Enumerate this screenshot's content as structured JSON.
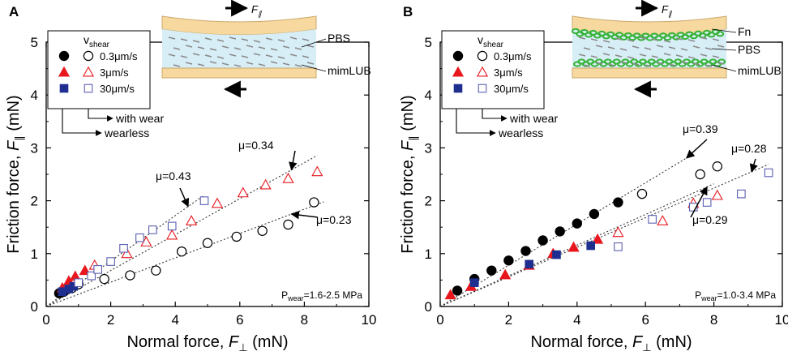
{
  "colors": {
    "filled_circle": "#000000",
    "open_circle": "#000000",
    "filled_triangle": "#e8171e",
    "open_triangle": "#e8171e",
    "filled_square": "#1f2f8f",
    "open_square": "#5a5fb0",
    "substrate": "#f7d9a0",
    "pbs": "#d8eef7",
    "fn": "#35b335"
  },
  "chart_data": [
    {
      "panel": "A",
      "type": "scatter",
      "xlabel": "Normal force, F⊥ (mN)",
      "ylabel": "Friction force, F∥ (mN)",
      "xlim": [
        0,
        10
      ],
      "ylim": [
        0,
        5
      ],
      "xticks": [
        "0",
        "2",
        "4",
        "6",
        "8",
        "10"
      ],
      "yticks": [
        "0",
        "1",
        "2",
        "3",
        "4",
        "5"
      ],
      "legend": {
        "title_main": "v",
        "title_sub": "shear",
        "entries": [
          "0.3μm/s",
          "3μm/s",
          "30μm/s"
        ],
        "wear_label": "with wear",
        "wearless_label": "wearless"
      },
      "pressure": {
        "main": "P",
        "sub": "wear",
        "value": "=1.6-2.5 MPa"
      },
      "schematic": {
        "labels": [
          "PBS",
          "mimLUB"
        ],
        "force_label": "F",
        "fn": false
      },
      "series": [
        {
          "name": "0.3μm/s wearless",
          "marker": "circle",
          "filled": true,
          "x": [
            0.4,
            0.55
          ],
          "y": [
            0.25,
            0.28
          ]
        },
        {
          "name": "0.3μm/s with wear",
          "marker": "circle",
          "filled": false,
          "x": [
            0.8,
            1.0,
            1.8,
            2.6,
            3.4,
            4.2,
            5.0,
            5.9,
            6.7,
            7.5,
            8.3
          ],
          "y": [
            0.35,
            0.42,
            0.52,
            0.59,
            0.68,
            1.04,
            1.2,
            1.32,
            1.43,
            1.55,
            1.97
          ]
        },
        {
          "name": "3μm/s wearless",
          "marker": "triangle",
          "filled": true,
          "x": [
            0.5,
            0.7,
            0.9,
            1.2
          ],
          "y": [
            0.35,
            0.48,
            0.57,
            0.68
          ]
        },
        {
          "name": "3μm/s with wear",
          "marker": "triangle",
          "filled": false,
          "x": [
            1.5,
            2.5,
            3.1,
            3.9,
            4.5,
            5.3,
            6.1,
            6.8,
            7.5,
            8.4
          ],
          "y": [
            0.78,
            1.0,
            1.22,
            1.35,
            1.62,
            1.95,
            2.15,
            2.3,
            2.42,
            2.55
          ]
        },
        {
          "name": "30μm/s wearless",
          "marker": "square",
          "filled": true,
          "x": [
            0.5,
            0.7,
            0.85
          ],
          "y": [
            0.28,
            0.33,
            0.38
          ]
        },
        {
          "name": "30μm/s with wear",
          "marker": "square",
          "filled": false,
          "x": [
            1.0,
            1.4,
            1.6,
            2.0,
            2.4,
            2.9,
            3.3,
            3.9,
            4.9
          ],
          "y": [
            0.45,
            0.58,
            0.7,
            0.85,
            1.1,
            1.3,
            1.45,
            1.52,
            2.0
          ]
        }
      ],
      "fits": [
        {
          "label": "μ=0.34",
          "slope": 0.34,
          "x_end": 8.4
        },
        {
          "label": "μ=0.43",
          "slope": 0.43,
          "x_end": 4.9
        },
        {
          "label": "μ=0.23",
          "slope": 0.23,
          "x_end": 8.6
        }
      ]
    },
    {
      "panel": "B",
      "type": "scatter",
      "xlabel": "Normal force, F⊥ (mN)",
      "ylabel": "Friction force, F∥ (mN)",
      "xlim": [
        0,
        10
      ],
      "ylim": [
        0,
        5
      ],
      "xticks": [
        "0",
        "2",
        "4",
        "6",
        "8",
        "10"
      ],
      "yticks": [
        "0",
        "1",
        "2",
        "3",
        "4",
        "5"
      ],
      "legend": {
        "title_main": "v",
        "title_sub": "shear",
        "entries": [
          "0.3μm/s",
          "3μm/s",
          "30μm/s"
        ],
        "wear_label": "with wear",
        "wearless_label": "wearless"
      },
      "pressure": {
        "main": "P",
        "sub": "wear",
        "value": "=1.0-3.4 MPa"
      },
      "schematic": {
        "labels": [
          "Fn",
          "PBS",
          "mimLUB"
        ],
        "force_label": "F",
        "fn": true
      },
      "series": [
        {
          "name": "0.3μm/s wearless",
          "marker": "circle",
          "filled": true,
          "x": [
            0.5,
            1.0,
            1.5,
            2.0,
            2.5,
            3.0,
            3.5,
            4.0,
            4.5,
            5.2
          ],
          "y": [
            0.3,
            0.52,
            0.68,
            0.87,
            1.05,
            1.25,
            1.42,
            1.57,
            1.75,
            1.97
          ]
        },
        {
          "name": "0.3μm/s with wear",
          "marker": "circle",
          "filled": false,
          "x": [
            5.9,
            7.6,
            8.1
          ],
          "y": [
            2.13,
            2.5,
            2.65
          ]
        },
        {
          "name": "3μm/s wearless",
          "marker": "triangle",
          "filled": true,
          "x": [
            0.3,
            0.9,
            1.9,
            2.6,
            3.3,
            3.9,
            4.6
          ],
          "y": [
            0.22,
            0.38,
            0.6,
            0.78,
            1.0,
            1.12,
            1.27
          ]
        },
        {
          "name": "3μm/s with wear",
          "marker": "triangle",
          "filled": false,
          "x": [
            5.2,
            6.5,
            7.4,
            8.1
          ],
          "y": [
            1.4,
            1.62,
            1.95,
            2.1
          ]
        },
        {
          "name": "30μm/s wearless",
          "marker": "square",
          "filled": true,
          "x": [
            1.0,
            2.6,
            3.4,
            4.4
          ],
          "y": [
            0.45,
            0.8,
            0.98,
            1.15
          ]
        },
        {
          "name": "30μm/s with wear",
          "marker": "square",
          "filled": false,
          "x": [
            5.2,
            6.2,
            7.4,
            7.8,
            8.8,
            9.6
          ],
          "y": [
            1.13,
            1.65,
            1.88,
            1.97,
            2.13,
            2.53
          ]
        }
      ],
      "fits": [
        {
          "label": "μ=0.39",
          "slope": 0.39,
          "x_end": 7.4
        },
        {
          "label": "μ=0.28",
          "slope": 0.28,
          "x_end": 9.6
        },
        {
          "label": "μ=0.29",
          "slope": 0.29,
          "x_end": 8.0
        }
      ]
    }
  ]
}
